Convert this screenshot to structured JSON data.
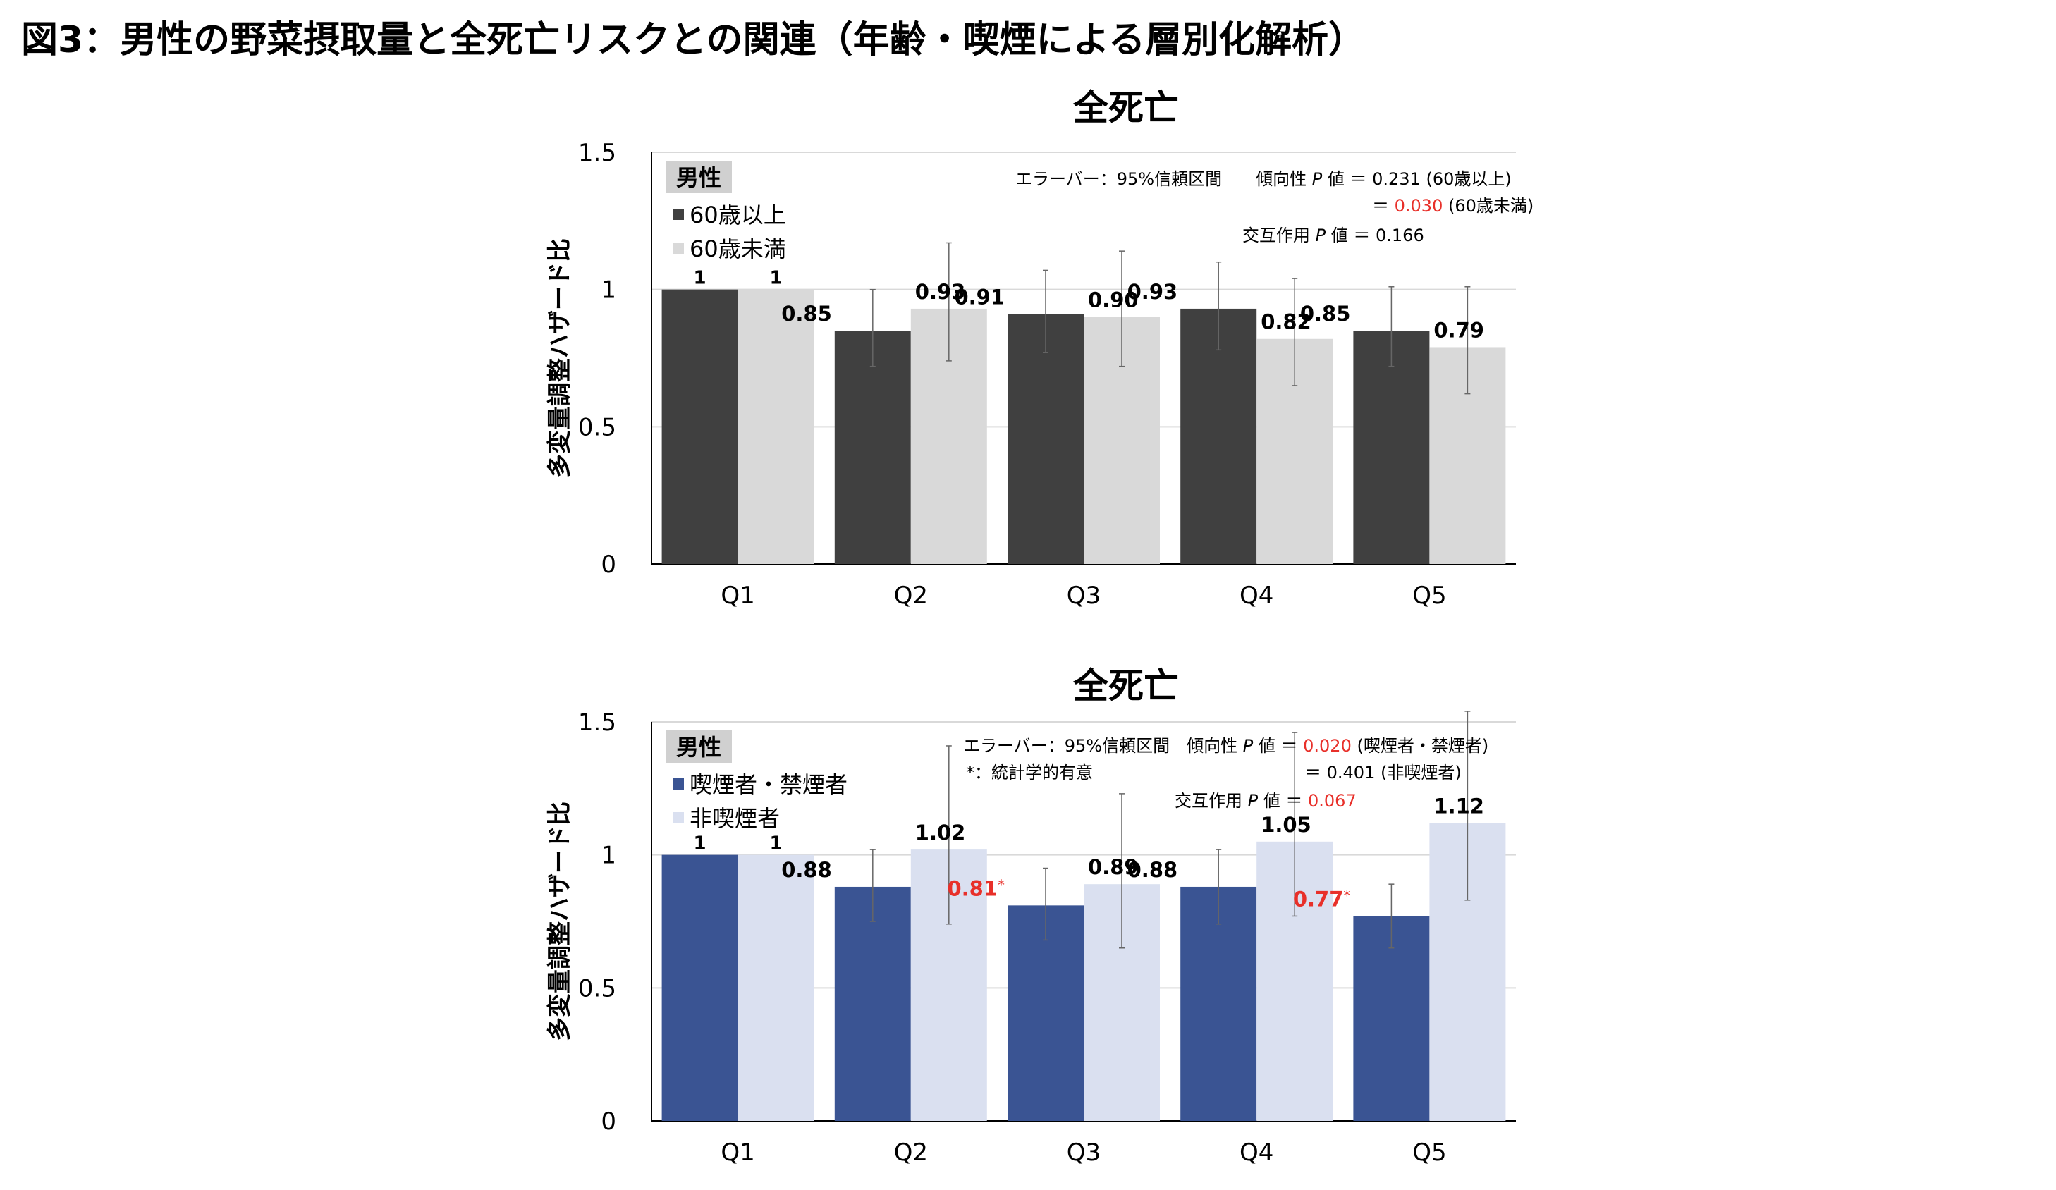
{
  "figure_title": "図3：男性の野菜摂取量と全死亡リスクとの関連（年齢・喫煙による層別化解析）",
  "colors": {
    "age_older": "#404040",
    "age_younger": "#d9d9d9",
    "smoker": "#3a5493",
    "nonsmoker": "#dae0f0",
    "significant": "#e8302a",
    "gridline": "#d9d9d9",
    "legend_header_bg": "#d0d0d0"
  },
  "chart_data": [
    {
      "type": "bar",
      "title": "全死亡",
      "ylabel": "多変量調整ハザード比",
      "xlabel": "",
      "ylim": [
        0,
        1.5
      ],
      "yticks": [
        0,
        0.5,
        1,
        1.5
      ],
      "ytick_labels": [
        "0",
        "0.5",
        "1",
        "1.5"
      ],
      "categories": [
        "Q1",
        "Q2",
        "Q3",
        "Q4",
        "Q5"
      ],
      "legend_header": "男性",
      "series": [
        {
          "name": "60歳以上",
          "color_key": "age_older",
          "values": [
            1,
            0.85,
            0.91,
            0.93,
            0.85
          ],
          "labels": [
            "1",
            "0.85",
            "0.91",
            "0.93",
            "0.85"
          ],
          "significant": [
            false,
            false,
            false,
            false,
            false
          ],
          "err_low": [
            null,
            0.72,
            0.77,
            0.78,
            0.72
          ],
          "err_high": [
            null,
            1.0,
            1.07,
            1.1,
            1.01
          ]
        },
        {
          "name": "60歳未満",
          "color_key": "age_younger",
          "values": [
            1,
            0.93,
            0.9,
            0.82,
            0.79
          ],
          "labels": [
            "1",
            "0.93",
            "0.90",
            "0.82",
            "0.79"
          ],
          "significant": [
            false,
            false,
            false,
            false,
            false
          ],
          "err_low": [
            null,
            0.74,
            0.72,
            0.65,
            0.62
          ],
          "err_high": [
            null,
            1.17,
            1.14,
            1.04,
            1.01
          ]
        }
      ],
      "annotations": {
        "errorbar_note": "エラーバー：95%信頼区間",
        "trend_label": "傾向性",
        "p_letter": "P",
        "value_word": "値",
        "equals": "＝",
        "trend_p_lines": [
          {
            "value": "0.231",
            "group": "(60歳以上)",
            "highlight": false
          },
          {
            "value": "0.030",
            "group": "(60歳未満)",
            "highlight": true
          }
        ],
        "interaction_label": "交互作用",
        "interaction_p": {
          "value": "0.166",
          "highlight": false
        }
      }
    },
    {
      "type": "bar",
      "title": "全死亡",
      "ylabel": "多変量調整ハザード比",
      "xlabel": "",
      "ylim": [
        0,
        1.5
      ],
      "yticks": [
        0,
        0.5,
        1,
        1.5
      ],
      "ytick_labels": [
        "0",
        "0.5",
        "1",
        "1.5"
      ],
      "categories": [
        "Q1",
        "Q2",
        "Q3",
        "Q4",
        "Q5"
      ],
      "legend_header": "男性",
      "series": [
        {
          "name": "喫煙者・禁煙者",
          "color_key": "smoker",
          "values": [
            1,
            0.88,
            0.81,
            0.88,
            0.77
          ],
          "labels": [
            "1",
            "0.88",
            "0.81*",
            "0.88",
            "0.77*"
          ],
          "significant": [
            false,
            false,
            true,
            false,
            true
          ],
          "err_low": [
            null,
            0.75,
            0.68,
            0.74,
            0.65
          ],
          "err_high": [
            null,
            1.02,
            0.95,
            1.02,
            0.89
          ]
        },
        {
          "name": "非喫煙者",
          "color_key": "nonsmoker",
          "values": [
            1,
            1.02,
            0.89,
            1.05,
            1.12
          ],
          "labels": [
            "1",
            "1.02",
            "0.89",
            "1.05",
            "1.12"
          ],
          "significant": [
            false,
            false,
            false,
            false,
            false
          ],
          "err_low": [
            null,
            0.74,
            0.65,
            0.77,
            0.83
          ],
          "err_high": [
            null,
            1.41,
            1.23,
            1.46,
            1.54
          ]
        }
      ],
      "annotations": {
        "errorbar_note": "エラーバー：95%信頼区間",
        "significance_note": "*：統計学的有意",
        "trend_label": "傾向性",
        "p_letter": "P",
        "value_word": "値",
        "equals": "＝",
        "trend_p_lines": [
          {
            "value": "0.020",
            "group": "(喫煙者・禁煙者)",
            "highlight": true
          },
          {
            "value": "0.401",
            "group": "(非喫煙者)",
            "highlight": false
          }
        ],
        "interaction_label": "交互作用",
        "interaction_p": {
          "value": "0.067",
          "highlight": true
        }
      }
    }
  ]
}
